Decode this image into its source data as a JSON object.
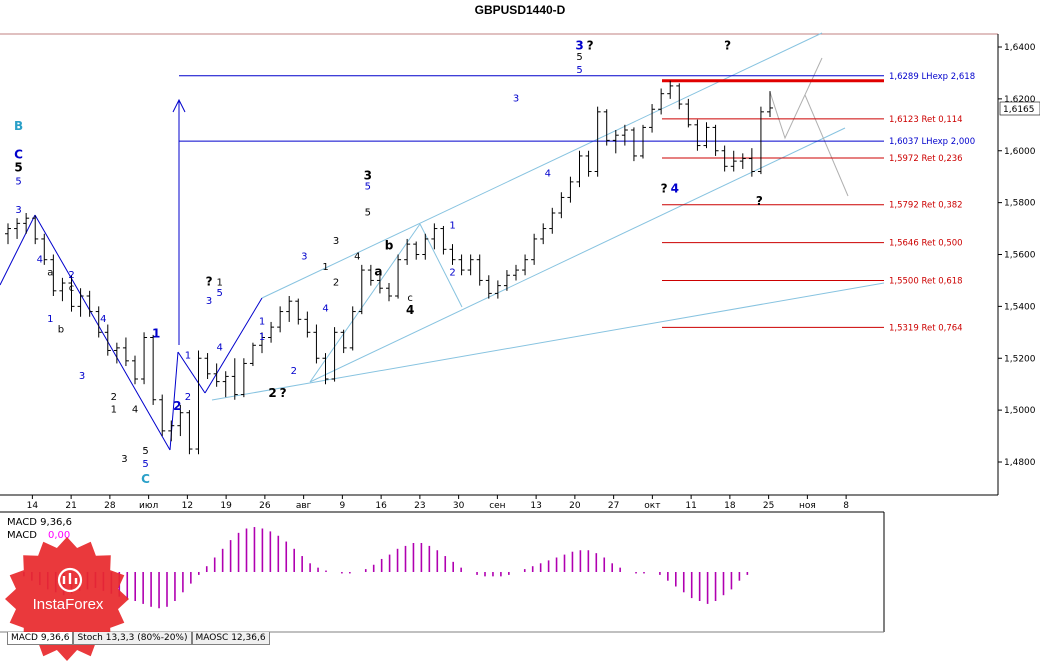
{
  "app": {
    "title": "GBPUSD1440-D"
  },
  "chart_data": {
    "type": "candlestick",
    "title": "GBPUSD1440-D",
    "symbol": "GBPUSD",
    "timeframe": "1440-D",
    "current_price": "1,6165",
    "grid": false,
    "y_ticks": [
      "1,6400",
      "1,6200",
      "1,6000",
      "1,5800",
      "1,5600",
      "1,5400",
      "1,5200",
      "1,5000",
      "1,4800"
    ],
    "ylim": [
      1.47,
      1.645
    ],
    "x_ticks": [
      "14",
      "21",
      "28",
      "июл",
      "12",
      "19",
      "26",
      "авг",
      "9",
      "16",
      "23",
      "30",
      "сен",
      "13",
      "20",
      "27",
      "окт",
      "11",
      "18",
      "25",
      "ноя",
      "8"
    ],
    "x_tick_index": [
      2,
      7,
      12,
      17,
      22,
      27,
      32,
      37,
      42,
      47,
      52,
      57,
      62,
      67,
      72,
      77,
      82,
      87,
      92,
      97,
      102,
      107
    ],
    "ohlc": [
      [
        1.568,
        1.572,
        1.564,
        1.57
      ],
      [
        1.57,
        1.574,
        1.566,
        1.572
      ],
      [
        1.572,
        1.576,
        1.568,
        1.574
      ],
      [
        1.574,
        1.575,
        1.564,
        1.566
      ],
      [
        1.566,
        1.568,
        1.556,
        1.558
      ],
      [
        1.558,
        1.56,
        1.544,
        1.546
      ],
      [
        1.546,
        1.551,
        1.542,
        1.549
      ],
      [
        1.549,
        1.552,
        1.538,
        1.54
      ],
      [
        1.54,
        1.547,
        1.536,
        1.544
      ],
      [
        1.544,
        1.546,
        1.536,
        1.538
      ],
      [
        1.538,
        1.54,
        1.528,
        1.53
      ],
      [
        1.53,
        1.533,
        1.521,
        1.523
      ],
      [
        1.523,
        1.526,
        1.518,
        1.524
      ],
      [
        1.524,
        1.528,
        1.517,
        1.519
      ],
      [
        1.519,
        1.521,
        1.51,
        1.512
      ],
      [
        1.512,
        1.53,
        1.51,
        1.528
      ],
      [
        1.528,
        1.529,
        1.502,
        1.504
      ],
      [
        1.504,
        1.506,
        1.49,
        1.492
      ],
      [
        1.492,
        1.496,
        1.488,
        1.494
      ],
      [
        1.494,
        1.502,
        1.49,
        1.499
      ],
      [
        1.499,
        1.5,
        1.483,
        1.485
      ],
      [
        1.485,
        1.523,
        1.483,
        1.52
      ],
      [
        1.52,
        1.522,
        1.512,
        1.514
      ],
      [
        1.514,
        1.518,
        1.509,
        1.511
      ],
      [
        1.511,
        1.515,
        1.505,
        1.513
      ],
      [
        1.513,
        1.52,
        1.504,
        1.506
      ],
      [
        1.506,
        1.52,
        1.505,
        1.518
      ],
      [
        1.518,
        1.526,
        1.517,
        1.525
      ],
      [
        1.525,
        1.53,
        1.522,
        1.528
      ],
      [
        1.528,
        1.534,
        1.526,
        1.532
      ],
      [
        1.532,
        1.54,
        1.53,
        1.538
      ],
      [
        1.538,
        1.544,
        1.534,
        1.542
      ],
      [
        1.542,
        1.543,
        1.533,
        1.535
      ],
      [
        1.535,
        1.538,
        1.528,
        1.53
      ],
      [
        1.53,
        1.533,
        1.518,
        1.52
      ],
      [
        1.52,
        1.522,
        1.51,
        1.512
      ],
      [
        1.512,
        1.532,
        1.511,
        1.53
      ],
      [
        1.53,
        1.531,
        1.522,
        1.524
      ],
      [
        1.524,
        1.54,
        1.523,
        1.538
      ],
      [
        1.538,
        1.556,
        1.537,
        1.554
      ],
      [
        1.554,
        1.556,
        1.548,
        1.55
      ],
      [
        1.55,
        1.552,
        1.545,
        1.547
      ],
      [
        1.547,
        1.549,
        1.542,
        1.544
      ],
      [
        1.544,
        1.56,
        1.543,
        1.558
      ],
      [
        1.558,
        1.566,
        1.556,
        1.564
      ],
      [
        1.564,
        1.565,
        1.558,
        1.56
      ],
      [
        1.56,
        1.568,
        1.558,
        1.566
      ],
      [
        1.566,
        1.572,
        1.562,
        1.57
      ],
      [
        1.57,
        1.571,
        1.56,
        1.562
      ],
      [
        1.562,
        1.564,
        1.556,
        1.558
      ],
      [
        1.558,
        1.56,
        1.552,
        1.554
      ],
      [
        1.554,
        1.56,
        1.552,
        1.558
      ],
      [
        1.558,
        1.56,
        1.548,
        1.55
      ],
      [
        1.55,
        1.552,
        1.543,
        1.545
      ],
      [
        1.545,
        1.55,
        1.543,
        1.548
      ],
      [
        1.548,
        1.554,
        1.546,
        1.552
      ],
      [
        1.552,
        1.556,
        1.55,
        1.554
      ],
      [
        1.554,
        1.56,
        1.552,
        1.558
      ],
      [
        1.558,
        1.568,
        1.556,
        1.566
      ],
      [
        1.566,
        1.572,
        1.564,
        1.57
      ],
      [
        1.57,
        1.578,
        1.568,
        1.576
      ],
      [
        1.576,
        1.584,
        1.574,
        1.582
      ],
      [
        1.582,
        1.59,
        1.58,
        1.588
      ],
      [
        1.588,
        1.6,
        1.586,
        1.598
      ],
      [
        1.598,
        1.6,
        1.59,
        1.592
      ],
      [
        1.592,
        1.617,
        1.59,
        1.615
      ],
      [
        1.615,
        1.616,
        1.602,
        1.604
      ],
      [
        1.604,
        1.608,
        1.599,
        1.606
      ],
      [
        1.606,
        1.61,
        1.602,
        1.608
      ],
      [
        1.608,
        1.609,
        1.596,
        1.598
      ],
      [
        1.598,
        1.61,
        1.597,
        1.609
      ],
      [
        1.609,
        1.618,
        1.607,
        1.616
      ],
      [
        1.616,
        1.624,
        1.614,
        1.622
      ],
      [
        1.622,
        1.627,
        1.62,
        1.625
      ],
      [
        1.625,
        1.626,
        1.616,
        1.618
      ],
      [
        1.618,
        1.62,
        1.609,
        1.61
      ],
      [
        1.61,
        1.612,
        1.6,
        1.602
      ],
      [
        1.602,
        1.611,
        1.601,
        1.609
      ],
      [
        1.609,
        1.61,
        1.598,
        1.6
      ],
      [
        1.6,
        1.602,
        1.592,
        1.594
      ],
      [
        1.594,
        1.6,
        1.592,
        1.596
      ],
      [
        1.596,
        1.599,
        1.593,
        1.597
      ],
      [
        1.597,
        1.601,
        1.59,
        1.592
      ],
      [
        1.592,
        1.617,
        1.591,
        1.615
      ],
      [
        1.615,
        1.623,
        1.613,
        1.6165
      ]
    ],
    "fib_levels": [
      {
        "value": 1.6289,
        "label": "1,6289 LHexp 2,618",
        "color": "#0000cc",
        "style": "long"
      },
      {
        "value": 1.6123,
        "label": "1,6123 Ret 0,114",
        "color": "#cc0000",
        "style": "short"
      },
      {
        "value": 1.6037,
        "label": "1,6037 LHexp 2,000",
        "color": "#0000cc",
        "style": "long"
      },
      {
        "value": 1.5972,
        "label": "1,5972 Ret 0,236",
        "color": "#cc0000",
        "style": "short"
      },
      {
        "value": 1.5792,
        "label": "1,5792 Ret 0,382",
        "color": "#cc0000",
        "style": "short"
      },
      {
        "value": 1.5646,
        "label": "1,5646 Ret 0,500",
        "color": "#cc0000",
        "style": "short"
      },
      {
        "value": 1.55,
        "label": "1,5500 Ret 0,618",
        "color": "#cc0000",
        "style": "short"
      },
      {
        "value": 1.5319,
        "label": "1,5319 Ret 0,764",
        "color": "#cc0000",
        "style": "short"
      }
    ],
    "resistance_level": 1.627,
    "wave_labels": [
      {
        "text": "B",
        "i": 1,
        "v": 1.608,
        "color": "#2aa0c8",
        "bold": true
      },
      {
        "text": "C",
        "i": 1,
        "v": 1.597,
        "color": "#0000cc",
        "bold": true
      },
      {
        "text": "5",
        "i": 1,
        "v": 1.592,
        "color": "#000000",
        "bold": true
      },
      {
        "text": "5",
        "i": 1,
        "v": 1.587,
        "color": "#0000cc"
      },
      {
        "text": "3",
        "i": 1,
        "v": 1.576,
        "color": "#0000cc"
      },
      {
        "text": "4",
        "i": 3,
        "v": 1.557,
        "color": "#0000cc"
      },
      {
        "text": "a",
        "i": 4,
        "v": 1.552,
        "color": "#000000"
      },
      {
        "text": "c",
        "i": 6,
        "v": 1.546,
        "color": "#000000"
      },
      {
        "text": "2",
        "i": 6,
        "v": 1.551,
        "color": "#0000cc"
      },
      {
        "text": "1",
        "i": 4,
        "v": 1.534,
        "color": "#0000cc"
      },
      {
        "text": "b",
        "i": 5,
        "v": 1.53,
        "color": "#000000"
      },
      {
        "text": "3",
        "i": 7,
        "v": 1.512,
        "color": "#0000cc"
      },
      {
        "text": "4",
        "i": 9,
        "v": 1.534,
        "color": "#0000cc"
      },
      {
        "text": "2",
        "i": 10,
        "v": 1.504,
        "color": "#000000"
      },
      {
        "text": "1",
        "i": 10,
        "v": 1.499,
        "color": "#000000"
      },
      {
        "text": "3",
        "i": 11,
        "v": 1.48,
        "color": "#000000"
      },
      {
        "text": "4",
        "i": 12,
        "v": 1.499,
        "color": "#000000"
      },
      {
        "text": "5",
        "i": 13,
        "v": 1.483,
        "color": "#000000"
      },
      {
        "text": "5",
        "i": 13,
        "v": 1.478,
        "color": "#0000cc"
      },
      {
        "text": "C",
        "i": 13,
        "v": 1.472,
        "color": "#2aa0c8",
        "bold": true
      },
      {
        "text": "1",
        "i": 14,
        "v": 1.528,
        "color": "#0000cc",
        "bold": true
      },
      {
        "text": "2",
        "i": 16,
        "v": 1.5,
        "color": "#0000cc",
        "bold": true
      },
      {
        "text": "2",
        "i": 17,
        "v": 1.504,
        "color": "#0000cc"
      },
      {
        "text": "1",
        "i": 17,
        "v": 1.52,
        "color": "#0000cc"
      },
      {
        "text": "3",
        "i": 19,
        "v": 1.541,
        "color": "#0000cc"
      },
      {
        "text": "?",
        "i": 19,
        "v": 1.548,
        "color": "#000000",
        "bold": true
      },
      {
        "text": "1",
        "i": 20,
        "v": 1.548,
        "color": "#000000"
      },
      {
        "text": "5",
        "i": 20,
        "v": 1.544,
        "color": "#0000cc"
      },
      {
        "text": "4",
        "i": 20,
        "v": 1.523,
        "color": "#0000cc"
      },
      {
        "text": "1",
        "i": 24,
        "v": 1.533,
        "color": "#0000cc"
      },
      {
        "text": "1",
        "i": 24,
        "v": 1.527,
        "color": "#0000cc"
      },
      {
        "text": "2",
        "i": 25,
        "v": 1.505,
        "color": "#000000",
        "bold": true
      },
      {
        "text": "?",
        "i": 26,
        "v": 1.505,
        "color": "#000000",
        "bold": true
      },
      {
        "text": "2",
        "i": 27,
        "v": 1.514,
        "color": "#0000cc"
      },
      {
        "text": "3",
        "i": 28,
        "v": 1.558,
        "color": "#0000cc"
      },
      {
        "text": "1",
        "i": 30,
        "v": 1.554,
        "color": "#000000"
      },
      {
        "text": "2",
        "i": 31,
        "v": 1.548,
        "color": "#000000"
      },
      {
        "text": "3",
        "i": 31,
        "v": 1.564,
        "color": "#000000"
      },
      {
        "text": "4",
        "i": 30,
        "v": 1.538,
        "color": "#0000cc"
      },
      {
        "text": "4",
        "i": 33,
        "v": 1.558,
        "color": "#000000"
      },
      {
        "text": "3",
        "i": 34,
        "v": 1.589,
        "color": "#000000",
        "bold": true
      },
      {
        "text": "5",
        "i": 34,
        "v": 1.585,
        "color": "#0000cc"
      },
      {
        "text": "5",
        "i": 34,
        "v": 1.575,
        "color": "#000000"
      },
      {
        "text": "b",
        "i": 36,
        "v": 1.562,
        "color": "#000000",
        "bold": true
      },
      {
        "text": "a",
        "i": 35,
        "v": 1.552,
        "color": "#000000",
        "bold": true
      },
      {
        "text": "c",
        "i": 38,
        "v": 1.542,
        "color": "#000000"
      },
      {
        "text": "4",
        "i": 38,
        "v": 1.537,
        "color": "#000000",
        "bold": true
      },
      {
        "text": "1",
        "i": 42,
        "v": 1.57,
        "color": "#0000cc"
      },
      {
        "text": "2",
        "i": 42,
        "v": 1.552,
        "color": "#0000cc"
      },
      {
        "text": "3",
        "i": 48,
        "v": 1.619,
        "color": "#0000cc"
      },
      {
        "text": "4",
        "i": 51,
        "v": 1.59,
        "color": "#0000cc"
      },
      {
        "text": "3",
        "i": 54,
        "v": 1.639,
        "color": "#0000cc",
        "bold": true
      },
      {
        "text": "?",
        "i": 55,
        "v": 1.639,
        "color": "#000000",
        "bold": true
      },
      {
        "text": "5",
        "i": 54,
        "v": 1.635,
        "color": "#000000"
      },
      {
        "text": "5",
        "i": 54,
        "v": 1.63,
        "color": "#0000cc"
      },
      {
        "text": "?",
        "i": 62,
        "v": 1.584,
        "color": "#000000",
        "bold": true
      },
      {
        "text": "4",
        "i": 63,
        "v": 1.584,
        "color": "#0000cc",
        "bold": true
      },
      {
        "text": "?",
        "i": 68,
        "v": 1.639,
        "color": "#000000",
        "bold": true
      },
      {
        "text": "?",
        "i": 71,
        "v": 1.579,
        "color": "#000000",
        "bold": true
      }
    ]
  },
  "indicator": {
    "macd_title": "MACD 9,36,6",
    "macd_label": "MACD",
    "macd_value": "0,00",
    "macd_colors": {
      "positive": "#b000b0",
      "label": "#ff00ff"
    },
    "histogram": [
      0,
      0,
      -3,
      -6,
      -9,
      -12,
      -14,
      -16,
      -15,
      -13,
      -12,
      -11,
      -13,
      -15,
      -17,
      -19,
      -20,
      -22,
      -24,
      -25,
      -24,
      -20,
      -14,
      -8,
      -2,
      4,
      10,
      16,
      22,
      27,
      30,
      31,
      30,
      28,
      25,
      21,
      16,
      11,
      6,
      3,
      1,
      0,
      -1,
      -1,
      0,
      2,
      5,
      9,
      12,
      16,
      18,
      20,
      20,
      18,
      15,
      11,
      7,
      3,
      0,
      -2,
      -3,
      -3,
      -3,
      -2,
      0,
      2,
      4,
      6,
      8,
      10,
      12,
      14,
      15,
      15,
      13,
      10,
      6,
      3,
      0,
      -1,
      -1,
      0,
      -2,
      -6,
      -10,
      -14,
      -18,
      -20,
      -22,
      -20,
      -16,
      -12,
      -6,
      -2
    ]
  },
  "tabs": [
    {
      "label": "MACD 9,36,6",
      "active": true
    },
    {
      "label": "Stoch 13,3,3 (80%-20%)",
      "active": false
    },
    {
      "label": "MAOSC 12,36,6",
      "active": false
    }
  ],
  "logo": {
    "text": "InstaForex",
    "color": "#e8282b"
  }
}
